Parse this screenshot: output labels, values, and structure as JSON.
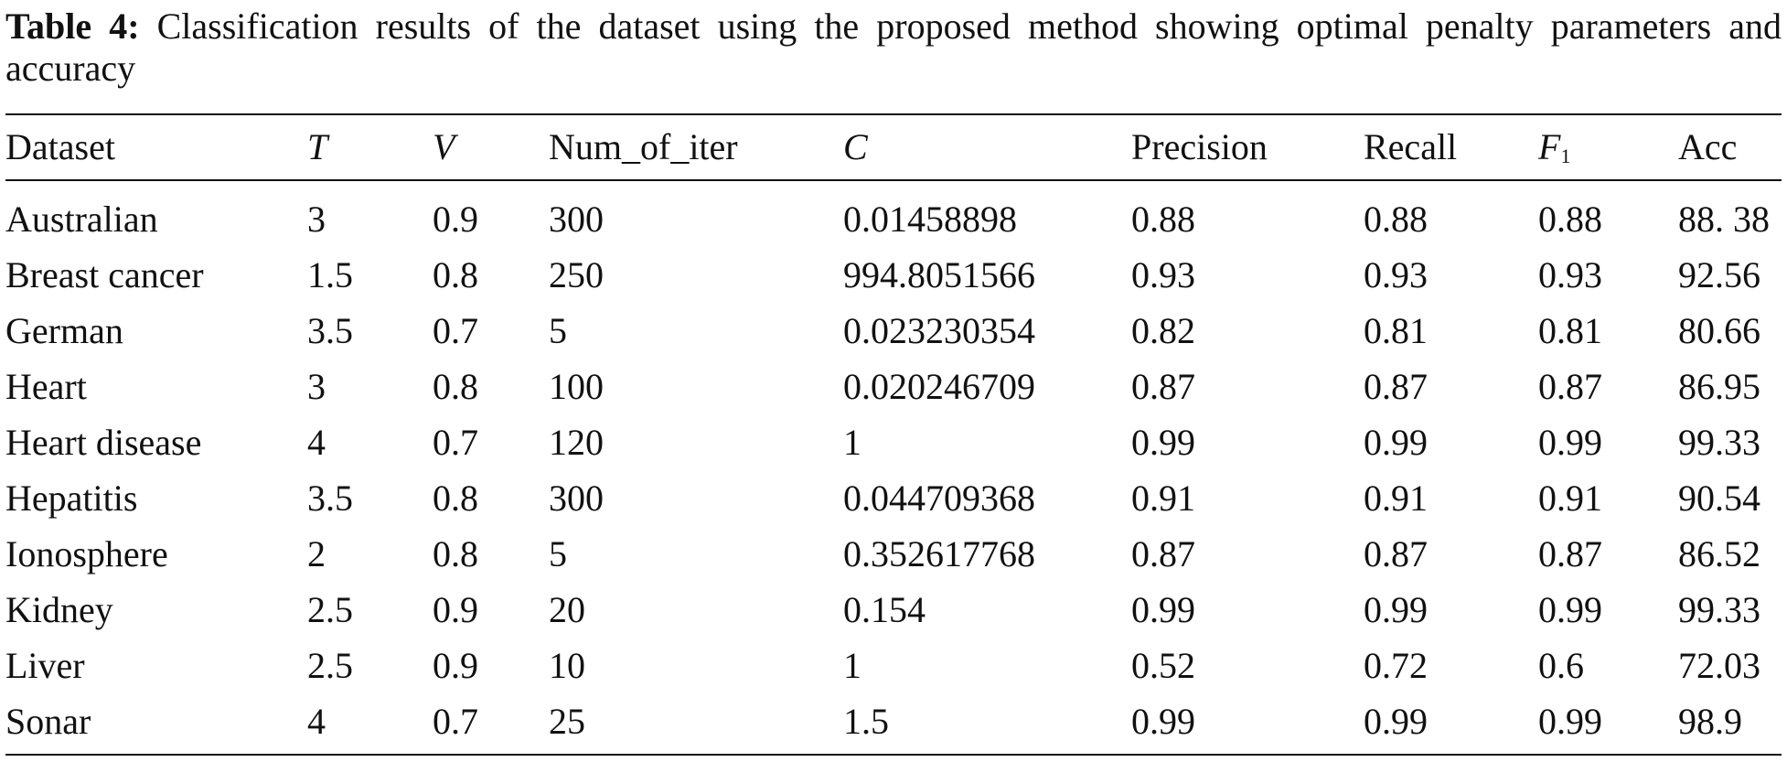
{
  "caption": {
    "label": "Table 4:",
    "text": "Classification results of the dataset using the proposed method showing optimal penalty parameters and accuracy"
  },
  "table": {
    "headers": [
      "Dataset",
      "T",
      "V",
      "Num_of_iter",
      "C",
      "Precision",
      "Recall",
      {
        "base": "F",
        "subscript": "1"
      },
      "Acc"
    ],
    "rows": [
      [
        "Australian",
        "3",
        "0.9",
        "300",
        "0.01458898",
        "0.88",
        "0.88",
        "0.88",
        "88. 38"
      ],
      [
        "Breast cancer",
        "1.5",
        "0.8",
        "250",
        "994.8051566",
        "0.93",
        "0.93",
        "0.93",
        "92.56"
      ],
      [
        "German",
        "3.5",
        "0.7",
        "5",
        "0.023230354",
        "0.82",
        "0.81",
        "0.81",
        "80.66"
      ],
      [
        "Heart",
        "3",
        "0.8",
        "100",
        "0.020246709",
        "0.87",
        "0.87",
        "0.87",
        "86.95"
      ],
      [
        "Heart disease",
        "4",
        "0.7",
        "120",
        "1",
        "0.99",
        "0.99",
        "0.99",
        "99.33"
      ],
      [
        "Hepatitis",
        "3.5",
        "0.8",
        "300",
        "0.044709368",
        "0.91",
        "0.91",
        "0.91",
        "90.54"
      ],
      [
        "Ionosphere",
        "2",
        "0.8",
        "5",
        "0.352617768",
        "0.87",
        "0.87",
        "0.87",
        "86.52"
      ],
      [
        "Kidney",
        "2.5",
        "0.9",
        "20",
        "0.154",
        "0.99",
        "0.99",
        "0.99",
        "99.33"
      ],
      [
        "Liver",
        "2.5",
        "0.9",
        "10",
        "1",
        "0.52",
        "0.72",
        "0.6",
        "72.03"
      ],
      [
        "Sonar",
        "4",
        "0.7",
        "25",
        "1.5",
        "0.99",
        "0.99",
        "0.99",
        "98.9"
      ]
    ]
  }
}
